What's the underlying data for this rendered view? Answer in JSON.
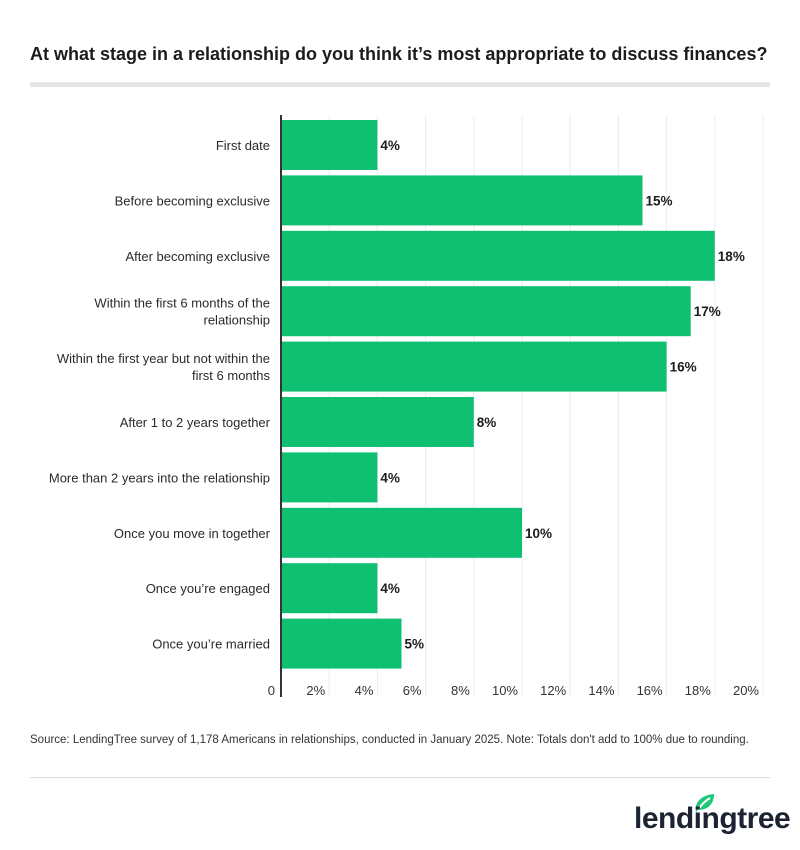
{
  "title": "At what stage in a relationship do you think it’s most appropriate to discuss finances?",
  "source": "Source: LendingTree survey of 1,178 Americans in relationships, conducted in January 2025. Note: Totals don't add to 100% due to rounding.",
  "logo": "lendingtree",
  "colors": {
    "bar": "#0fc073",
    "accent": "#1ec77a"
  },
  "chart_data": {
    "type": "bar",
    "orientation": "horizontal",
    "categories": [
      [
        "First date"
      ],
      [
        "Before becoming exclusive"
      ],
      [
        "After becoming exclusive"
      ],
      [
        "Within the first 6 months of the",
        "relationship"
      ],
      [
        "Within the first year but not within the",
        "first 6 months"
      ],
      [
        "After 1 to 2 years together"
      ],
      [
        "More than 2 years into the relationship"
      ],
      [
        "Once you move in together"
      ],
      [
        "Once you’re engaged"
      ],
      [
        "Once you’re married"
      ]
    ],
    "values": [
      4,
      15,
      18,
      17,
      16,
      8,
      4,
      10,
      4,
      5
    ],
    "data_labels": [
      "4%",
      "15%",
      "18%",
      "17%",
      "16%",
      "8%",
      "4%",
      "10%",
      "4%",
      "5%"
    ],
    "xlim": [
      0,
      20
    ],
    "xticks": [
      "0",
      "2%",
      "4%",
      "6%",
      "8%",
      "10%",
      "12%",
      "14%",
      "16%",
      "18%",
      "20%"
    ],
    "grid": true
  }
}
